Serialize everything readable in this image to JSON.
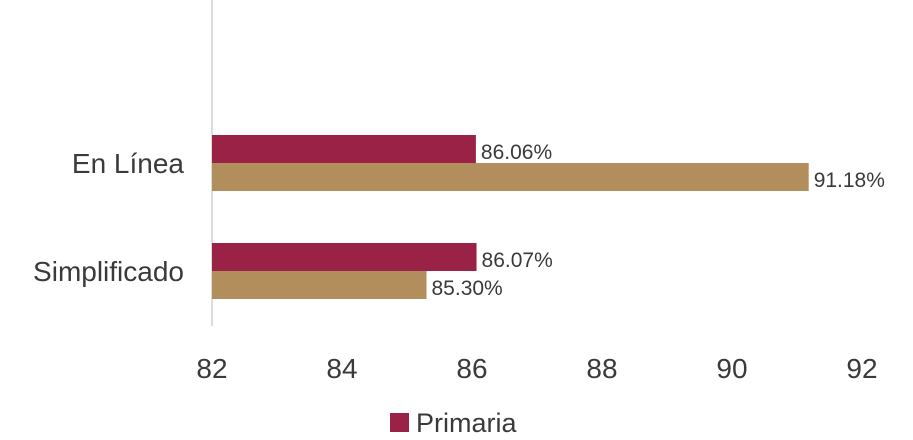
{
  "chart_data": {
    "type": "bar",
    "orientation": "horizontal",
    "categories": [
      "En Línea",
      "Simplificado"
    ],
    "series": [
      {
        "name": "Primaria",
        "values": [
          86.06,
          86.07
        ],
        "labels": [
          "86.06%",
          "86.07%"
        ],
        "color": "#9b2247"
      },
      {
        "values": [
          91.18,
          85.3
        ],
        "labels": [
          "91.18%",
          "85.30%"
        ],
        "color": "#b38e5d"
      }
    ],
    "xlim": [
      82,
      92
    ],
    "xticks": [
      82,
      84,
      86,
      88,
      90,
      92
    ],
    "xtick_labels": [
      "82",
      "84",
      "86",
      "88",
      "90",
      "92"
    ],
    "grid": false,
    "legend_position": "bottom",
    "legend_entries": [
      "Primaria"
    ]
  }
}
